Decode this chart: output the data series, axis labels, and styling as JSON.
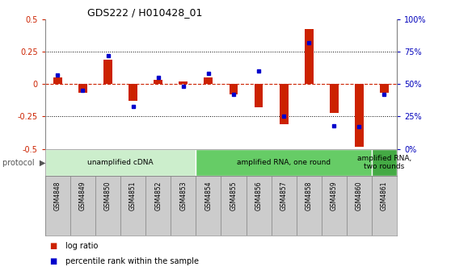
{
  "title": "GDS222 / H010428_01",
  "samples": [
    "GSM4848",
    "GSM4849",
    "GSM4850",
    "GSM4851",
    "GSM4852",
    "GSM4853",
    "GSM4854",
    "GSM4855",
    "GSM4856",
    "GSM4857",
    "GSM4858",
    "GSM4859",
    "GSM4860",
    "GSM4861"
  ],
  "log_ratio": [
    0.05,
    -0.07,
    0.19,
    -0.13,
    0.03,
    0.02,
    0.05,
    -0.08,
    -0.18,
    -0.31,
    0.42,
    -0.22,
    -0.48,
    -0.07
  ],
  "percentile": [
    57,
    45,
    72,
    33,
    55,
    48,
    58,
    42,
    60,
    25,
    82,
    18,
    17,
    42
  ],
  "ylim_left": [
    -0.5,
    0.5
  ],
  "ylim_right": [
    0,
    100
  ],
  "yticks_left": [
    -0.5,
    -0.25,
    0.0,
    0.25,
    0.5
  ],
  "yticks_right": [
    0,
    25,
    50,
    75,
    100
  ],
  "ytick_labels_right": [
    "0%",
    "25%",
    "50%",
    "75%",
    "100%"
  ],
  "bar_color": "#cc2200",
  "dot_color": "#0000cc",
  "zero_line_color": "#cc2200",
  "grid_color": "#444444",
  "protocols": [
    {
      "label": "unamplified cDNA",
      "start": 0,
      "end": 6,
      "color": "#cceecc"
    },
    {
      "label": "amplified RNA, one round",
      "start": 6,
      "end": 13,
      "color": "#66cc66"
    },
    {
      "label": "amplified RNA,\ntwo rounds",
      "start": 13,
      "end": 14,
      "color": "#44aa44"
    }
  ],
  "protocol_header": "protocol",
  "legend_log_ratio": "log ratio",
  "legend_percentile": "percentile rank within the sample",
  "bar_width": 0.35,
  "sample_box_color": "#cccccc",
  "sample_box_edge": "#888888"
}
